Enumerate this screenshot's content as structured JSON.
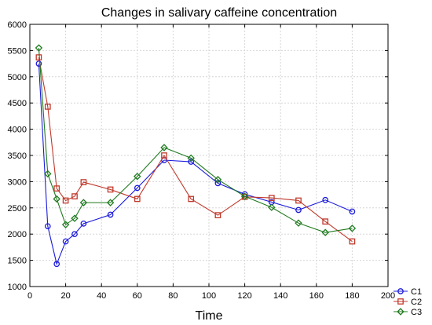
{
  "chart_data": {
    "type": "line",
    "title": "Changes in salivary caffeine concentration",
    "xlabel": "Time",
    "ylabel": "",
    "xlim": [
      0,
      200
    ],
    "ylim": [
      1000,
      6000
    ],
    "xticks": [
      "0",
      "20",
      "40",
      "60",
      "80",
      "100",
      "120",
      "140",
      "160",
      "180",
      "200"
    ],
    "yticks": [
      "1000",
      "1500",
      "2000",
      "2500",
      "3000",
      "3500",
      "4000",
      "4500",
      "5000",
      "5500",
      "6000"
    ],
    "grid": true,
    "legend_position": "bottom-right",
    "series": [
      {
        "name": "C1",
        "color": "#1a1adb",
        "marker": "circle",
        "x": [
          5,
          10,
          15,
          20,
          25,
          30,
          45,
          60,
          75,
          90,
          105,
          120,
          135,
          150,
          165,
          180
        ],
        "y": [
          5250,
          2150,
          1430,
          1860,
          2000,
          2200,
          2370,
          2880,
          3410,
          3380,
          2970,
          2760,
          2610,
          2460,
          2650,
          2430
        ]
      },
      {
        "name": "C2",
        "color": "#c0392b",
        "marker": "square",
        "x": [
          5,
          10,
          15,
          20,
          25,
          30,
          45,
          60,
          75,
          90,
          105,
          120,
          135,
          150,
          165,
          180
        ],
        "y": [
          5370,
          4430,
          2870,
          2640,
          2720,
          2990,
          2850,
          2670,
          3500,
          2670,
          2360,
          2710,
          2690,
          2640,
          2240,
          1860
        ]
      },
      {
        "name": "C3",
        "color": "#1f7a1f",
        "marker": "diamond",
        "x": [
          5,
          10,
          15,
          20,
          25,
          30,
          45,
          60,
          75,
          90,
          105,
          120,
          135,
          150,
          165,
          180
        ],
        "y": [
          5550,
          3150,
          2670,
          2180,
          2300,
          2600,
          2600,
          3100,
          3650,
          3450,
          3040,
          2720,
          2510,
          2210,
          2030,
          2110
        ]
      }
    ]
  }
}
